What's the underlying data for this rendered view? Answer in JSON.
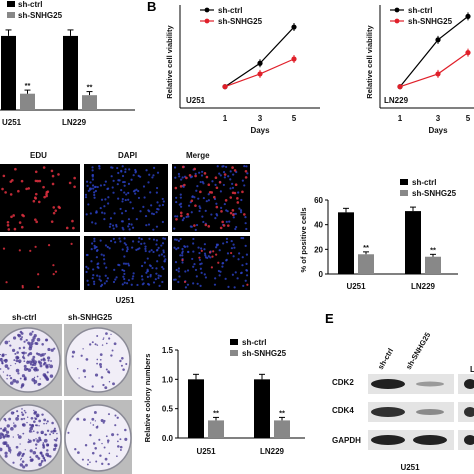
{
  "panels": {
    "b": {
      "letter": "B"
    },
    "e": {
      "letter": "E"
    }
  },
  "legend": {
    "ctrl": "sh-ctrl",
    "kd": "sh-SNHG25"
  },
  "sig": "**",
  "edu": {
    "headers": [
      "EDU",
      "DAPI",
      "Merge"
    ],
    "caption": "U251"
  },
  "colony_images": {
    "headers": [
      "sh-ctrl",
      "sh-SNHG25"
    ]
  },
  "western": {
    "lanes": [
      "sh-ctrl",
      "sh-SNHG25"
    ],
    "rows": [
      "CDK2",
      "CDK4",
      "GAPDH"
    ],
    "caption": "U251"
  },
  "colors": {
    "ctrl": "#000000",
    "kd": "#888888",
    "kd_line": "#e0202a",
    "edu": "#e03040",
    "dapi": "#2a40c0"
  },
  "chart_data": [
    {
      "id": "panel-a-bar",
      "type": "bar",
      "categories": [
        "U251",
        "LN229"
      ],
      "series": [
        {
          "name": "sh-ctrl",
          "values": [
            1.0,
            1.0
          ]
        },
        {
          "name": "sh-SNHG25",
          "values": [
            0.22,
            0.2
          ]
        }
      ],
      "ylim": [
        0,
        1.35
      ]
    },
    {
      "id": "panel-b-u251",
      "type": "line",
      "x": [
        1,
        3,
        5
      ],
      "xlabel": "Days",
      "ylabel": "Relative cell viability",
      "annotation": "U251",
      "ylim": [
        0,
        4.6
      ],
      "series": [
        {
          "name": "sh-ctrl",
          "values": [
            1.0,
            2.1,
            3.8
          ]
        },
        {
          "name": "sh-SNHG25",
          "values": [
            1.0,
            1.6,
            2.3
          ]
        }
      ]
    },
    {
      "id": "panel-b-ln229",
      "type": "line",
      "x": [
        1,
        3,
        5
      ],
      "xlabel": "Days",
      "ylabel": "Relative cell viability",
      "annotation": "LN229",
      "ylim": [
        0,
        4.6
      ],
      "series": [
        {
          "name": "sh-ctrl",
          "values": [
            1.0,
            3.2,
            4.3
          ]
        },
        {
          "name": "sh-SNHG25",
          "values": [
            1.0,
            1.6,
            2.6
          ]
        }
      ]
    },
    {
      "id": "panel-edu-bar",
      "type": "bar",
      "categories": [
        "U251",
        "LN229"
      ],
      "ylabel": "% of positive cells",
      "ylim": [
        0,
        60
      ],
      "yticks": [
        0,
        20,
        40,
        60
      ],
      "series": [
        {
          "name": "sh-ctrl",
          "values": [
            50,
            51
          ]
        },
        {
          "name": "sh-SNHG25",
          "values": [
            16,
            14
          ]
        }
      ]
    },
    {
      "id": "panel-colony-bar",
      "type": "bar",
      "categories": [
        "U251",
        "LN229"
      ],
      "ylabel": "Relative colony numbers",
      "ylim": [
        0,
        1.5
      ],
      "yticks": [
        0.0,
        0.5,
        1.0,
        1.5
      ],
      "series": [
        {
          "name": "sh-ctrl",
          "values": [
            1.0,
            1.0
          ]
        },
        {
          "name": "sh-SNHG25",
          "values": [
            0.3,
            0.3
          ]
        }
      ]
    }
  ]
}
